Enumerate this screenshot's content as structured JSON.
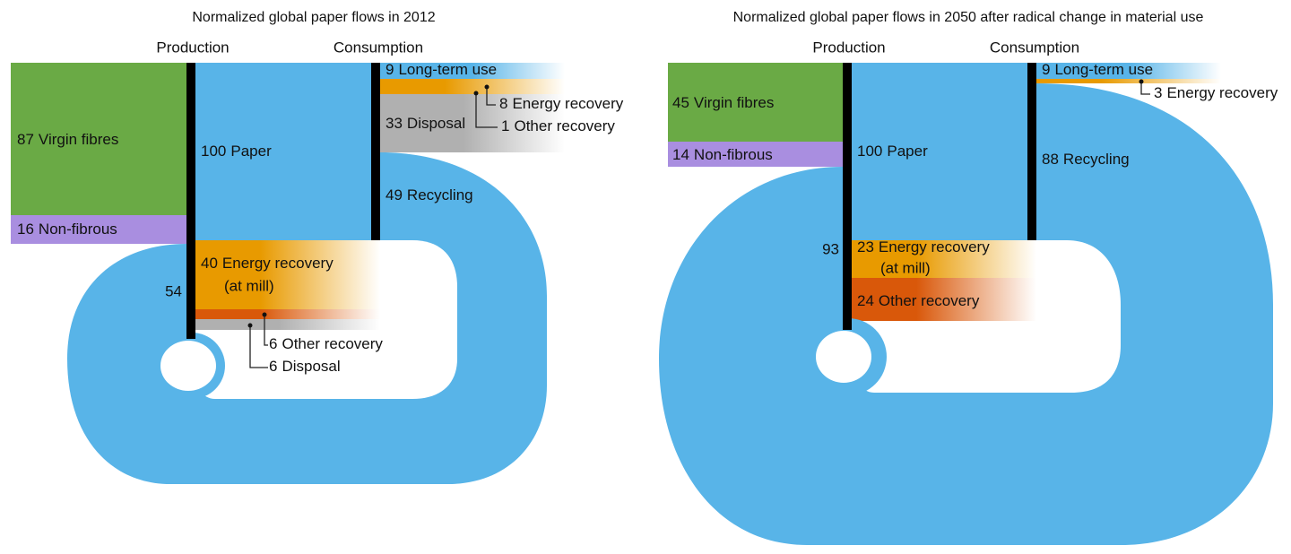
{
  "panels": [
    {
      "title": "Normalized global paper flows in 2012",
      "production": "Production",
      "consumption": "Consumption",
      "inputs": [
        {
          "value": 87,
          "name": "Virgin fibres"
        },
        {
          "value": 16,
          "name": "Non-fibrous"
        }
      ],
      "paper": {
        "value": 100,
        "name": "Paper"
      },
      "mill_losses": [
        {
          "value": 40,
          "name": "Energy recovery",
          "note": "(at mill)"
        },
        {
          "value": 6,
          "name": "Other recovery"
        },
        {
          "value": 6,
          "name": "Disposal"
        }
      ],
      "outputs": [
        {
          "value": 9,
          "name": "Long-term use"
        },
        {
          "value": 8,
          "name": "Energy recovery"
        },
        {
          "value": 1,
          "name": "Other recovery"
        },
        {
          "value": 33,
          "name": "Disposal"
        },
        {
          "value": 49,
          "name": "Recycling"
        }
      ],
      "recycled_input": 54
    },
    {
      "title": "Normalized global paper flows in 2050 after radical change in material use",
      "production": "Production",
      "consumption": "Consumption",
      "inputs": [
        {
          "value": 45,
          "name": "Virgin fibres"
        },
        {
          "value": 14,
          "name": "Non-fibrous"
        }
      ],
      "paper": {
        "value": 100,
        "name": "Paper"
      },
      "mill_losses": [
        {
          "value": 23,
          "name": "Energy recovery",
          "note": "(at mill)"
        },
        {
          "value": 24,
          "name": "Other recovery"
        }
      ],
      "outputs": [
        {
          "value": 9,
          "name": "Long-term use"
        },
        {
          "value": 3,
          "name": "Energy recovery"
        },
        {
          "value": 88,
          "name": "Recycling"
        }
      ],
      "recycled_input": 93
    }
  ]
}
